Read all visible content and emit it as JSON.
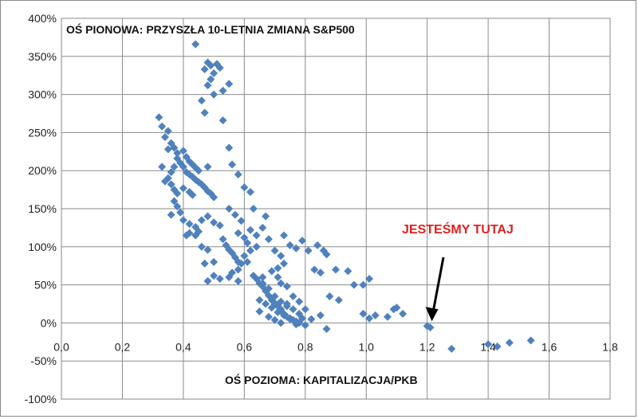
{
  "chart_data": {
    "type": "scatter",
    "y_title": "OŚ PIONOWA: PRZYSZŁA 10-LETNIA ZMIANA S&P500",
    "x_title": "OŚ POZIOMA: KAPITALIZACJA/PKB",
    "annotation": "JESTEŚMY TUTAJ",
    "annotation_color": "#e02020",
    "marker_color": "#4f81bd",
    "grid": true,
    "xlim": [
      0.0,
      1.8
    ],
    "ylim": [
      -100,
      400
    ],
    "x_ticks": [
      0.0,
      0.2,
      0.4,
      0.6,
      0.8,
      1.0,
      1.2,
      1.4,
      1.6,
      1.8
    ],
    "x_tick_labels": [
      "0,0",
      "0,2",
      "0,4",
      "0,6",
      "0,8",
      "1,0",
      "1,2",
      "1,4",
      "1,6",
      "1,8"
    ],
    "y_ticks": [
      -100,
      -50,
      0,
      50,
      100,
      150,
      200,
      250,
      300,
      350,
      400
    ],
    "y_tick_labels": [
      "-100%",
      "-50%",
      "0%",
      "50%",
      "100%",
      "150%",
      "200%",
      "250%",
      "300%",
      "350%",
      "400%"
    ],
    "arrow_target": [
      1.21,
      -2
    ],
    "points": [
      [
        0.44,
        366
      ],
      [
        0.48,
        342
      ],
      [
        0.49,
        338
      ],
      [
        0.47,
        333
      ],
      [
        0.51,
        340
      ],
      [
        0.52,
        335
      ],
      [
        0.5,
        328
      ],
      [
        0.49,
        320
      ],
      [
        0.48,
        312
      ],
      [
        0.55,
        314
      ],
      [
        0.53,
        305
      ],
      [
        0.5,
        300
      ],
      [
        0.46,
        292
      ],
      [
        0.47,
        276
      ],
      [
        0.53,
        266
      ],
      [
        0.32,
        270
      ],
      [
        0.33,
        258
      ],
      [
        0.35,
        252
      ],
      [
        0.34,
        244
      ],
      [
        0.36,
        236
      ],
      [
        0.37,
        230
      ],
      [
        0.35,
        228
      ],
      [
        0.38,
        223
      ],
      [
        0.4,
        226
      ],
      [
        0.41,
        218
      ],
      [
        0.42,
        212
      ],
      [
        0.43,
        208
      ],
      [
        0.44,
        204
      ],
      [
        0.45,
        200
      ],
      [
        0.38,
        216
      ],
      [
        0.39,
        210
      ],
      [
        0.4,
        205
      ],
      [
        0.41,
        198
      ],
      [
        0.42,
        195
      ],
      [
        0.43,
        192
      ],
      [
        0.44,
        188
      ],
      [
        0.45,
        185
      ],
      [
        0.46,
        182
      ],
      [
        0.47,
        178
      ],
      [
        0.48,
        173
      ],
      [
        0.49,
        170
      ],
      [
        0.5,
        165
      ],
      [
        0.37,
        205
      ],
      [
        0.36,
        198
      ],
      [
        0.35,
        190
      ],
      [
        0.34,
        186
      ],
      [
        0.33,
        205
      ],
      [
        0.36,
        182
      ],
      [
        0.37,
        175
      ],
      [
        0.38,
        170
      ],
      [
        0.4,
        177
      ],
      [
        0.42,
        172
      ],
      [
        0.43,
        168
      ],
      [
        0.48,
        205
      ],
      [
        0.55,
        230
      ],
      [
        0.56,
        208
      ],
      [
        0.58,
        195
      ],
      [
        0.6,
        178
      ],
      [
        0.62,
        172
      ],
      [
        0.55,
        150
      ],
      [
        0.57,
        142
      ],
      [
        0.59,
        134
      ],
      [
        0.63,
        150
      ],
      [
        0.66,
        125
      ],
      [
        0.67,
        140
      ],
      [
        0.68,
        110
      ],
      [
        0.7,
        95
      ],
      [
        0.72,
        88
      ],
      [
        0.73,
        115
      ],
      [
        0.75,
        102
      ],
      [
        0.77,
        98
      ],
      [
        0.79,
        108
      ],
      [
        0.81,
        95
      ],
      [
        0.84,
        102
      ],
      [
        0.86,
        95
      ],
      [
        0.87,
        90
      ],
      [
        0.83,
        70
      ],
      [
        0.85,
        66
      ],
      [
        0.9,
        70
      ],
      [
        0.94,
        68
      ],
      [
        0.96,
        50
      ],
      [
        1.01,
        58
      ],
      [
        0.99,
        50
      ],
      [
        0.37,
        160
      ],
      [
        0.38,
        153
      ],
      [
        0.39,
        145
      ],
      [
        0.36,
        142
      ],
      [
        0.4,
        135
      ],
      [
        0.42,
        130
      ],
      [
        0.44,
        126
      ],
      [
        0.46,
        135
      ],
      [
        0.48,
        140
      ],
      [
        0.5,
        132
      ],
      [
        0.52,
        128
      ],
      [
        0.45,
        120
      ],
      [
        0.42,
        118
      ],
      [
        0.44,
        115
      ],
      [
        0.41,
        115
      ],
      [
        0.46,
        100
      ],
      [
        0.48,
        96
      ],
      [
        0.5,
        80
      ],
      [
        0.47,
        78
      ],
      [
        0.5,
        62
      ],
      [
        0.52,
        58
      ],
      [
        0.48,
        55
      ],
      [
        0.53,
        110
      ],
      [
        0.54,
        102
      ],
      [
        0.55,
        96
      ],
      [
        0.56,
        92
      ],
      [
        0.57,
        86
      ],
      [
        0.58,
        80
      ],
      [
        0.59,
        78
      ],
      [
        0.6,
        88
      ],
      [
        0.61,
        80
      ],
      [
        0.58,
        70
      ],
      [
        0.56,
        66
      ],
      [
        0.55,
        60
      ],
      [
        0.58,
        55
      ],
      [
        0.63,
        62
      ],
      [
        0.64,
        58
      ],
      [
        0.65,
        52
      ],
      [
        0.66,
        48
      ],
      [
        0.67,
        42
      ],
      [
        0.68,
        36
      ],
      [
        0.69,
        30
      ],
      [
        0.7,
        26
      ],
      [
        0.71,
        22
      ],
      [
        0.72,
        18
      ],
      [
        0.73,
        12
      ],
      [
        0.74,
        8
      ],
      [
        0.75,
        6
      ],
      [
        0.76,
        4
      ],
      [
        0.77,
        2
      ],
      [
        0.78,
        0
      ],
      [
        0.79,
        6
      ],
      [
        0.8,
        -3
      ],
      [
        0.78,
        12
      ],
      [
        0.76,
        18
      ],
      [
        0.74,
        22
      ],
      [
        0.72,
        28
      ],
      [
        0.7,
        35
      ],
      [
        0.68,
        45
      ],
      [
        0.66,
        52
      ],
      [
        0.65,
        30
      ],
      [
        0.67,
        25
      ],
      [
        0.69,
        20
      ],
      [
        0.71,
        14
      ],
      [
        0.73,
        10
      ],
      [
        0.75,
        5
      ],
      [
        0.77,
        -2
      ],
      [
        0.65,
        15
      ],
      [
        0.68,
        8
      ],
      [
        0.7,
        4
      ],
      [
        0.72,
        0
      ],
      [
        0.74,
        25
      ],
      [
        0.76,
        35
      ],
      [
        0.78,
        28
      ],
      [
        0.8,
        18
      ],
      [
        0.71,
        60
      ],
      [
        0.72,
        52
      ],
      [
        0.74,
        48
      ],
      [
        0.66,
        60
      ],
      [
        0.69,
        68
      ],
      [
        0.71,
        72
      ],
      [
        0.73,
        78
      ],
      [
        0.62,
        95
      ],
      [
        0.64,
        100
      ],
      [
        0.61,
        105
      ],
      [
        0.6,
        112
      ],
      [
        0.58,
        118
      ],
      [
        0.62,
        122
      ],
      [
        0.64,
        115
      ],
      [
        0.88,
        35
      ],
      [
        0.91,
        30
      ],
      [
        0.87,
        -8
      ],
      [
        0.85,
        10
      ],
      [
        0.82,
        5
      ],
      [
        0.99,
        12
      ],
      [
        1.01,
        6
      ],
      [
        1.03,
        10
      ],
      [
        1.07,
        8
      ],
      [
        1.1,
        20
      ],
      [
        1.12,
        12
      ],
      [
        1.09,
        18
      ],
      [
        1.2,
        -4
      ],
      [
        1.21,
        -6
      ],
      [
        1.28,
        -34
      ],
      [
        1.4,
        -28
      ],
      [
        1.43,
        -31
      ],
      [
        1.47,
        -26
      ],
      [
        1.54,
        -23
      ]
    ]
  }
}
